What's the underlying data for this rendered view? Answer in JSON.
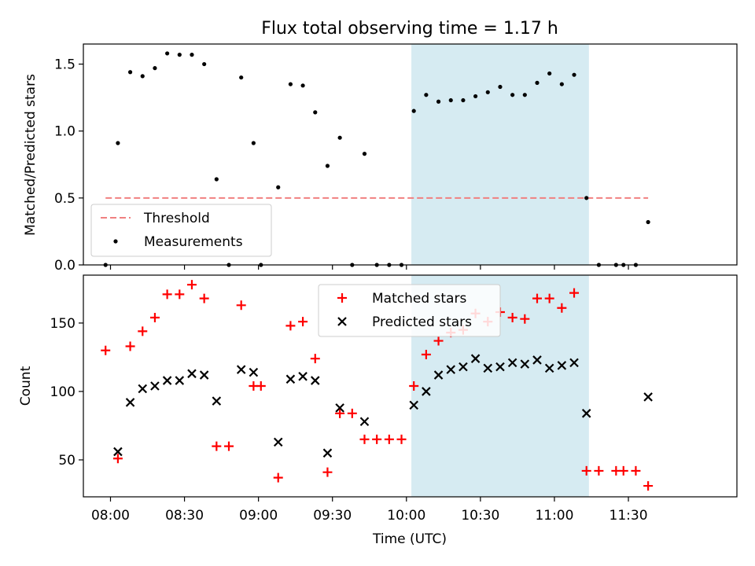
{
  "title": "Flux total observing time = 1.17 h",
  "colors": {
    "shade": "#add8e6",
    "threshold": "#f08080",
    "matched": "#ff0000",
    "predicted": "#000000",
    "measure": "#000000"
  },
  "chart_data": [
    {
      "type": "scatter",
      "ylabel": "Matched/Predicted stars",
      "ylim": [
        0,
        1.65
      ],
      "yticks": [
        "0.0",
        "0.5",
        "1.0",
        "1.5"
      ],
      "ytick_values": [
        0,
        0.5,
        1.0,
        1.5
      ],
      "shaded_span": [
        "10:02",
        "11:14"
      ],
      "legend_position": "lower-left",
      "threshold": {
        "name": "Threshold",
        "value": 0.5,
        "x_range": [
          "07:58",
          "11:38"
        ]
      },
      "series": [
        {
          "name": "Measurements",
          "x": [
            "07:58",
            "08:03",
            "08:08",
            "08:13",
            "08:18",
            "08:23",
            "08:28",
            "08:33",
            "08:38",
            "08:43",
            "08:48",
            "08:53",
            "08:58",
            "09:01",
            "09:08",
            "09:13",
            "09:18",
            "09:23",
            "09:28",
            "09:33",
            "09:38",
            "09:43",
            "09:48",
            "09:53",
            "09:58",
            "10:03",
            "10:08",
            "10:13",
            "10:18",
            "10:23",
            "10:28",
            "10:33",
            "10:38",
            "10:43",
            "10:48",
            "10:53",
            "10:58",
            "11:03",
            "11:08",
            "11:13",
            "11:18",
            "11:25",
            "11:28",
            "11:33",
            "11:38"
          ],
          "y": [
            0,
            0.91,
            1.44,
            1.41,
            1.47,
            1.58,
            1.57,
            1.57,
            1.5,
            0.64,
            0,
            1.4,
            0.91,
            0,
            0.58,
            1.35,
            1.34,
            1.14,
            0.74,
            0.95,
            0,
            0.83,
            0,
            0,
            0,
            1.15,
            1.27,
            1.22,
            1.23,
            1.23,
            1.26,
            1.29,
            1.33,
            1.27,
            1.27,
            1.36,
            1.43,
            1.35,
            1.42,
            0.5,
            0,
            0,
            0,
            0,
            0.32
          ]
        }
      ]
    },
    {
      "type": "scatter",
      "xlabel": "Time (UTC)",
      "ylabel": "Count",
      "xlim": [
        "07:49",
        "12:14"
      ],
      "xticks": [
        "08:00",
        "08:30",
        "09:00",
        "09:30",
        "10:00",
        "10:30",
        "11:00",
        "11:30"
      ],
      "ylim": [
        23,
        185
      ],
      "yticks": [
        "50",
        "100",
        "150"
      ],
      "ytick_values": [
        50,
        100,
        150
      ],
      "shaded_span": [
        "10:02",
        "11:14"
      ],
      "legend_position": "upper-center",
      "series": [
        {
          "name": "Matched stars",
          "marker": "+",
          "x": [
            "07:58",
            "08:03",
            "08:08",
            "08:13",
            "08:18",
            "08:23",
            "08:28",
            "08:33",
            "08:38",
            "08:43",
            "08:48",
            "08:53",
            "08:58",
            "09:01",
            "09:08",
            "09:13",
            "09:18",
            "09:23",
            "09:28",
            "09:33",
            "09:38",
            "09:43",
            "09:48",
            "09:53",
            "09:58",
            "10:03",
            "10:08",
            "10:13",
            "10:18",
            "10:23",
            "10:28",
            "10:33",
            "10:38",
            "10:43",
            "10:48",
            "10:53",
            "10:58",
            "11:03",
            "11:08",
            "11:13",
            "11:18",
            "11:25",
            "11:28",
            "11:33",
            "11:38"
          ],
          "y": [
            130,
            51,
            133,
            144,
            154,
            171,
            171,
            178,
            168,
            60,
            60,
            163,
            104,
            104,
            37,
            148,
            151,
            124,
            41,
            84,
            84,
            65,
            65,
            65,
            65,
            104,
            127,
            137,
            143,
            145,
            157,
            151,
            158,
            154,
            153,
            168,
            168,
            161,
            172,
            42,
            42,
            42,
            42,
            42,
            31
          ]
        },
        {
          "name": "Predicted stars",
          "marker": "x",
          "x": [
            "08:03",
            "08:08",
            "08:13",
            "08:18",
            "08:23",
            "08:28",
            "08:33",
            "08:38",
            "08:43",
            "08:53",
            "08:58",
            "09:08",
            "09:13",
            "09:18",
            "09:23",
            "09:28",
            "09:33",
            "09:43",
            "10:03",
            "10:08",
            "10:13",
            "10:18",
            "10:23",
            "10:28",
            "10:33",
            "10:38",
            "10:43",
            "10:48",
            "10:53",
            "10:58",
            "11:03",
            "11:08",
            "11:13",
            "11:38"
          ],
          "y": [
            56,
            92,
            102,
            104,
            108,
            108,
            113,
            112,
            93,
            116,
            114,
            63,
            109,
            111,
            108,
            55,
            88,
            78,
            90,
            100,
            112,
            116,
            118,
            124,
            117,
            118,
            121,
            120,
            123,
            117,
            119,
            121,
            84,
            96
          ]
        }
      ]
    }
  ]
}
